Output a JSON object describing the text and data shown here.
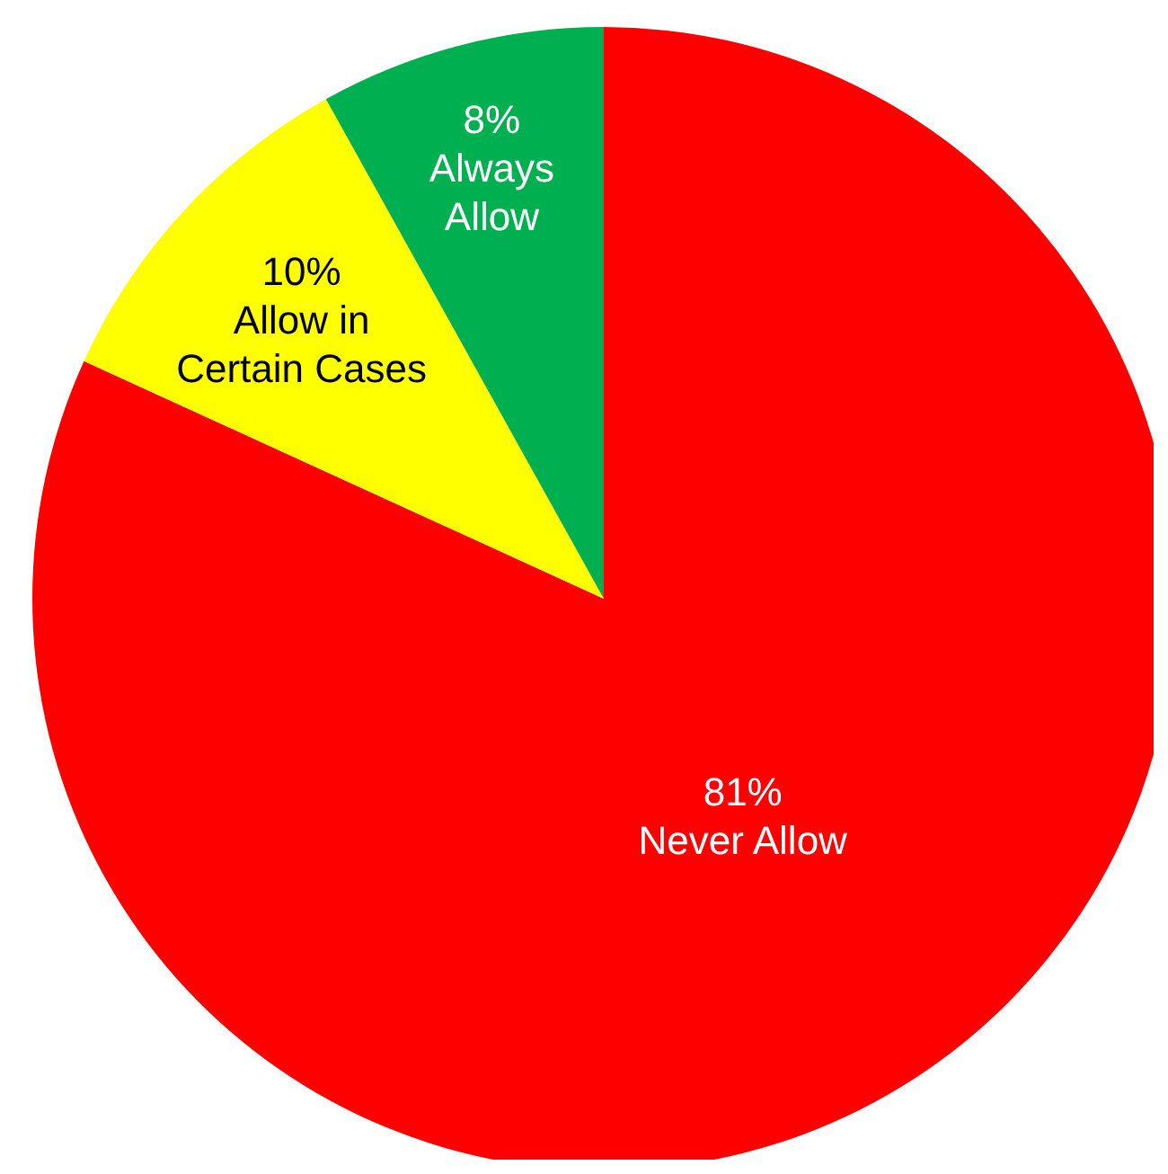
{
  "chart_data": {
    "type": "pie",
    "categories": [
      "Never Allow",
      "Allow in Certain Cases",
      "Always Allow"
    ],
    "values": [
      81,
      10,
      8
    ],
    "value_labels": [
      "81%",
      "10%",
      "8%"
    ],
    "colors": [
      "#ff0000",
      "#ffff00",
      "#00b050"
    ]
  }
}
